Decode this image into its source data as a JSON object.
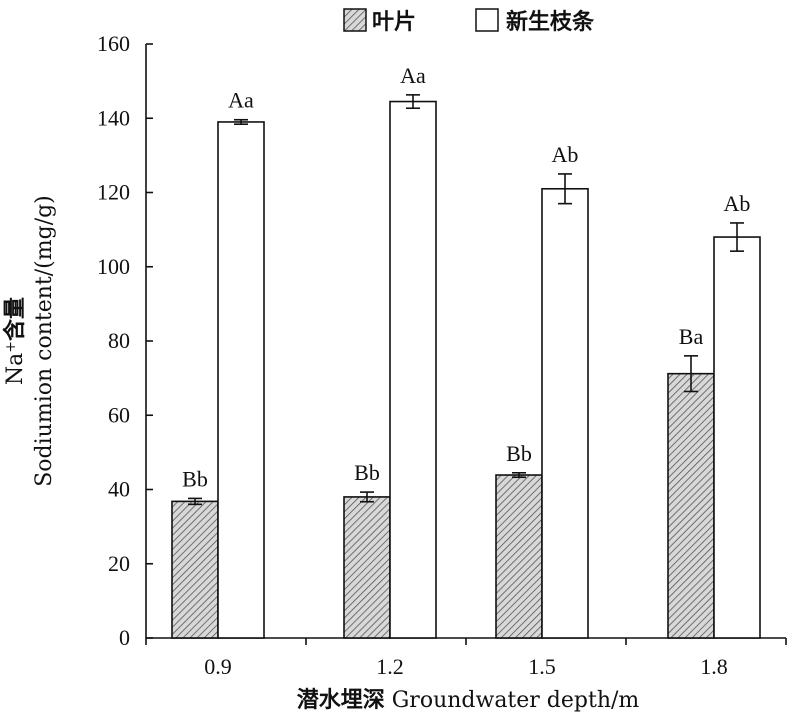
{
  "chart_data": {
    "type": "bar",
    "categories": [
      "0.9",
      "1.2",
      "1.5",
      "1.8"
    ],
    "series": [
      {
        "name": "叶片",
        "values": [
          36.8,
          38.0,
          43.9,
          71.2
        ],
        "errors": [
          0.8,
          1.3,
          0.6,
          4.8
        ],
        "labels": [
          "Bb",
          "Bb",
          "Bb",
          "Ba"
        ],
        "pattern": "hatched"
      },
      {
        "name": "新生枝条",
        "values": [
          139.0,
          144.5,
          121.0,
          108.0
        ],
        "errors": [
          0.6,
          1.8,
          4.0,
          3.8
        ],
        "labels": [
          "Aa",
          "Aa",
          "Ab",
          "Ab"
        ],
        "pattern": "open"
      }
    ],
    "ylim": [
      0,
      160
    ],
    "yticks": [
      "0",
      "20",
      "40",
      "60",
      "80",
      "100",
      "120",
      "140",
      "160"
    ],
    "ylabel_line1_main": "Na",
    "ylabel_line1_sup": "+",
    "ylabel_line1_rest": "含量",
    "ylabel_line2": "Sodiumion content/(mg/g)",
    "xlabel_cn": "潜水埋深",
    "xlabel_en": " Groundwater depth/m",
    "legend_position": "top",
    "grid": false
  }
}
